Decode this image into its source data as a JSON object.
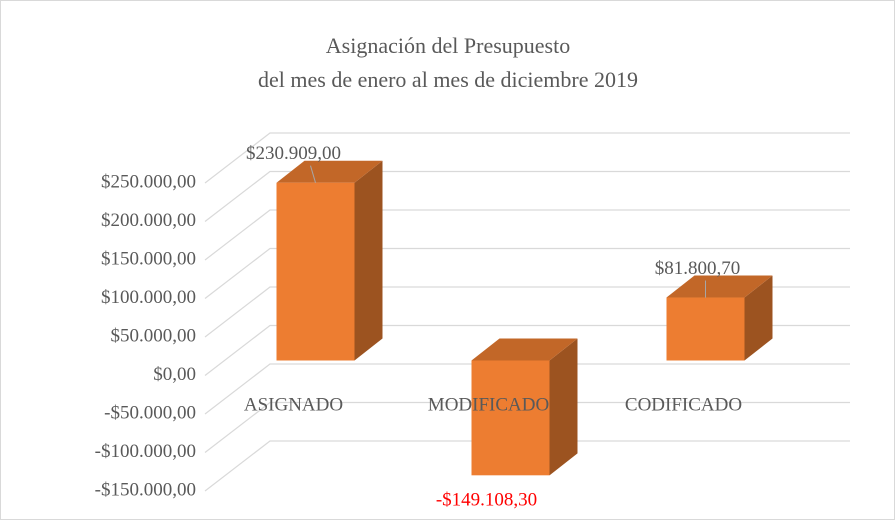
{
  "chart_data": {
    "type": "bar3d",
    "title": [
      "Asignación del Presupuesto",
      "del mes de enero al mes de diciembre 2019"
    ],
    "categories": [
      "ASIGNADO",
      "MODIFICADO",
      "CODIFICADO"
    ],
    "values": [
      230909,
      -149108.3,
      81800.7
    ],
    "value_labels": [
      "$230.909,00",
      "-$149.108,30",
      "$81.800,70"
    ],
    "color": "#ed7d31",
    "negative_label_color": "#ff0000",
    "ylim": [
      -150000,
      250000
    ],
    "yticks": [
      {
        "value": -150000,
        "label": "-$150.000,00"
      },
      {
        "value": -100000,
        "label": "-$100.000,00"
      },
      {
        "value": -50000,
        "label": "-$50.000,00"
      },
      {
        "value": 0,
        "label": "$0,00"
      },
      {
        "value": 50000,
        "label": "$50.000,00"
      },
      {
        "value": 100000,
        "label": "$100.000,00"
      },
      {
        "value": 150000,
        "label": "$150.000,00"
      },
      {
        "value": 200000,
        "label": "$200.000,00"
      },
      {
        "value": 250000,
        "label": "$250.000,00"
      }
    ],
    "grid": true
  }
}
